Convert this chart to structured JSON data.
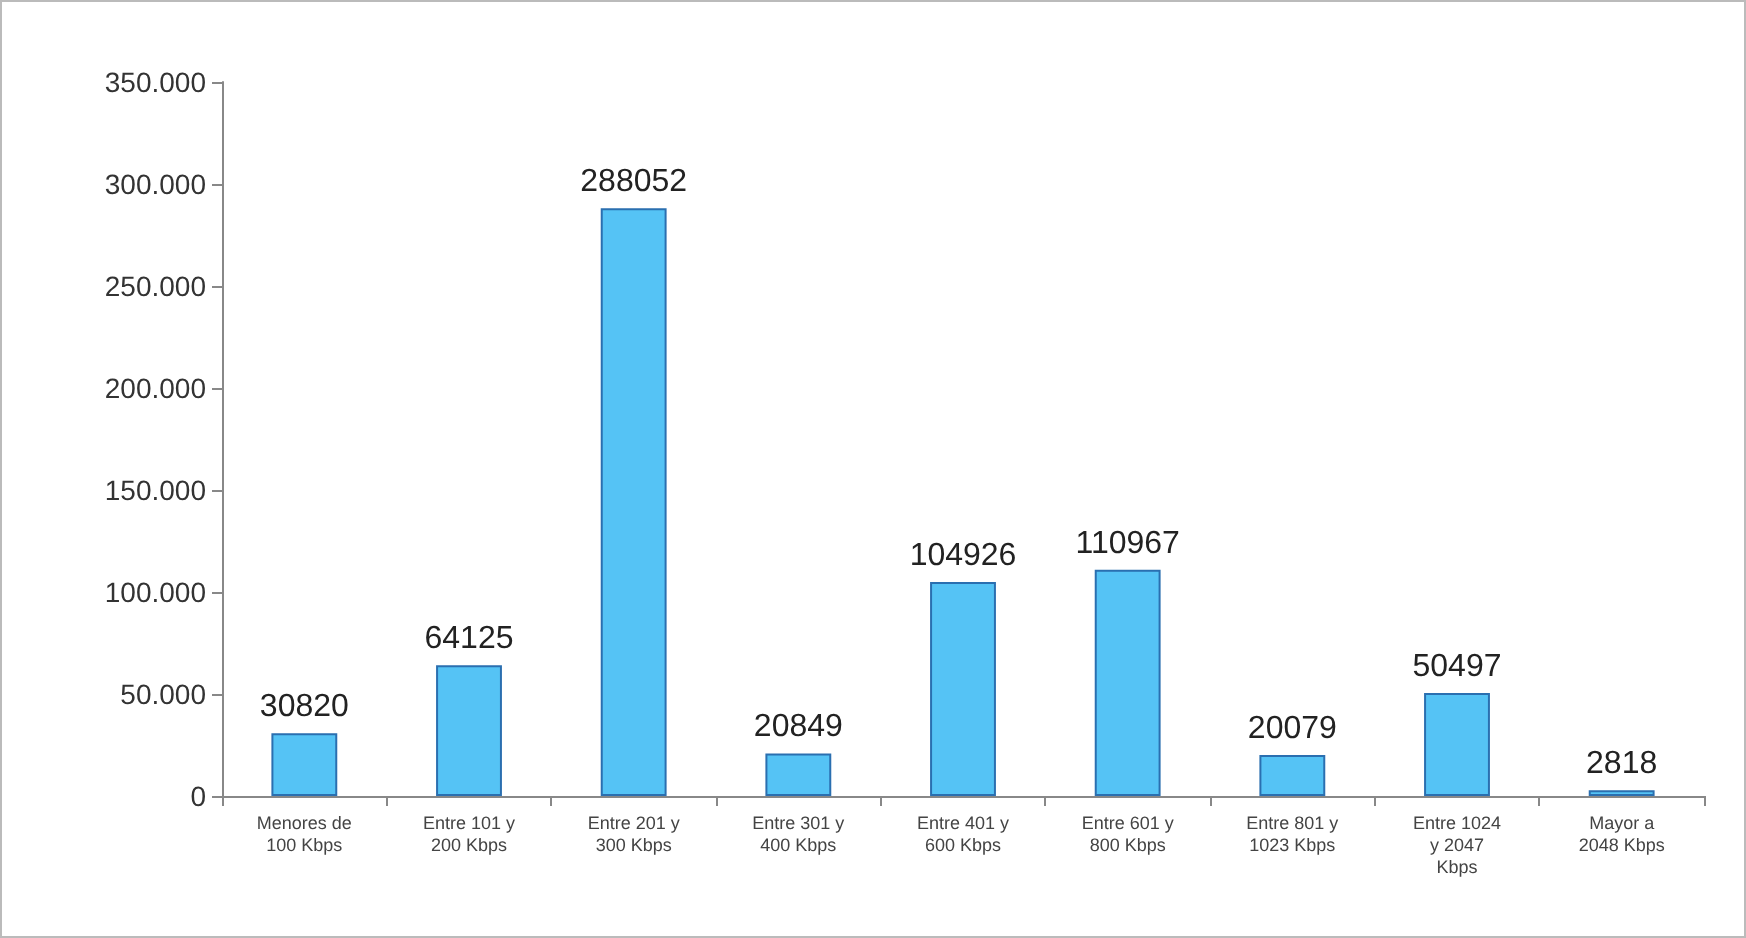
{
  "chart_data": {
    "type": "bar",
    "categories": [
      "Menores de\n100 Kbps",
      "Entre 101 y\n200 Kbps",
      "Entre 201 y\n300 Kbps",
      "Entre 301 y\n400 Kbps",
      "Entre 401 y\n600 Kbps",
      "Entre 601 y\n800 Kbps",
      "Entre 801 y\n1023 Kbps",
      "Entre 1024\ny 2047\nKbps",
      "Mayor a\n2048 Kbps"
    ],
    "values": [
      30820,
      64125,
      288052,
      20849,
      104926,
      110967,
      20079,
      50497,
      2818
    ],
    "color": "#55c3f5",
    "data_labels": true,
    "ylim": [
      0,
      350000
    ],
    "yticks": [
      {
        "value": 0,
        "label": "0"
      },
      {
        "value": 50000,
        "label": "50.000"
      },
      {
        "value": 100000,
        "label": "100.000"
      },
      {
        "value": 150000,
        "label": "150.000"
      },
      {
        "value": 200000,
        "label": "200.000"
      },
      {
        "value": 250000,
        "label": "250.000"
      },
      {
        "value": 300000,
        "label": "300.000"
      },
      {
        "value": 350000,
        "label": "350.000"
      }
    ]
  }
}
